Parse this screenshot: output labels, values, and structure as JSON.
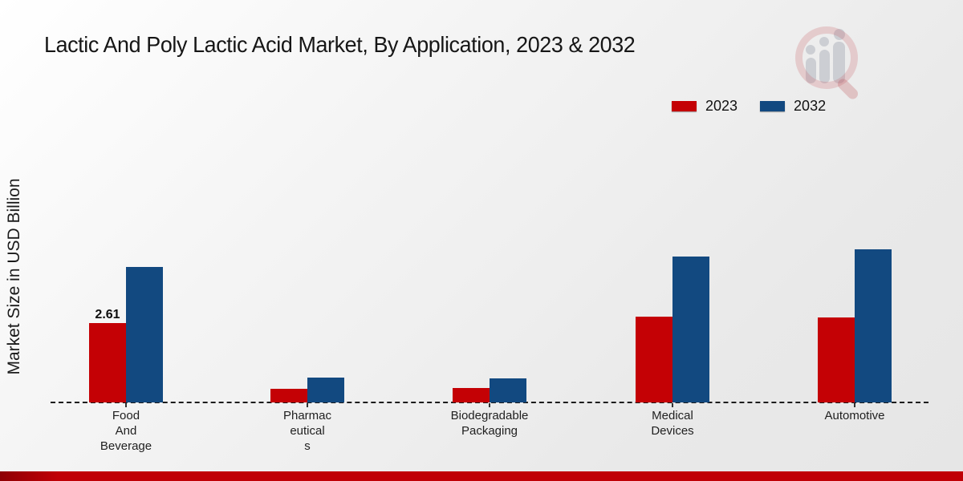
{
  "page": {
    "title": "Lactic And Poly Lactic Acid Market, By Application, 2023 & 2032"
  },
  "y_axis": {
    "label": "Market Size in USD Billion"
  },
  "legend": {
    "items": [
      {
        "label": "2023",
        "color": "#c40105"
      },
      {
        "label": "2032",
        "color": "#124980"
      }
    ]
  },
  "chart_data": {
    "type": "bar",
    "title": "Lactic And Poly Lactic Acid Market, By Application, 2023 & 2032",
    "xlabel": "",
    "ylabel": "Market Size in USD Billion",
    "categories": [
      "Food And Beverage",
      "Pharmaceuticals",
      "Biodegradable Packaging",
      "Medical Devices",
      "Automotive"
    ],
    "category_label_lines": [
      [
        "Food",
        "And",
        "Beverage"
      ],
      [
        "Pharmac",
        "eutical",
        "s"
      ],
      [
        "Biodegradable",
        "Packaging"
      ],
      [
        "Medical",
        "Devices"
      ],
      [
        "Automotive"
      ]
    ],
    "series": [
      {
        "name": "2023",
        "color": "#c40105",
        "values": [
          2.61,
          0.45,
          0.47,
          2.82,
          2.8
        ]
      },
      {
        "name": "2032",
        "color": "#124980",
        "values": [
          4.45,
          0.82,
          0.79,
          4.8,
          5.04
        ]
      }
    ],
    "annotations": [
      {
        "series_index": 0,
        "category_index": 0,
        "text": "2.61"
      }
    ],
    "ylim": [
      0,
      5.5
    ],
    "grid": false,
    "legend_position": "top-right",
    "baseline_style": "dashed"
  },
  "footer": {
    "accent_color": "#c00006"
  }
}
